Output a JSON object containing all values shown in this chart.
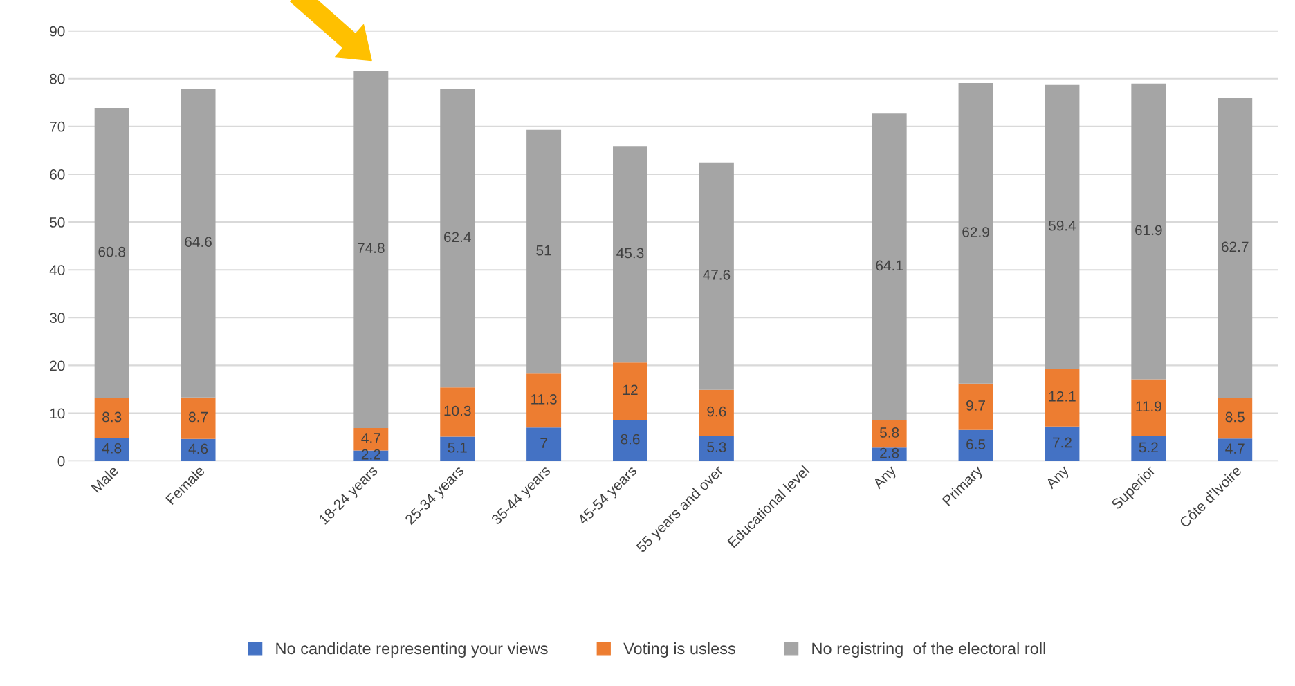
{
  "chart_data": {
    "type": "bar",
    "stacked": true,
    "categories": [
      "Male",
      "Female",
      null,
      "18-24 years",
      "25-34 years",
      "35-44 years",
      "45-54 years",
      "55 years and over",
      "Educational level",
      "Any",
      "Primary",
      "Any",
      "Superior",
      "Côte d'Ivoire"
    ],
    "series": [
      {
        "name": "No candidate representing your views",
        "color": "#4472c4",
        "values": [
          4.8,
          4.6,
          null,
          2.2,
          5.1,
          7,
          8.6,
          5.3,
          null,
          2.8,
          6.5,
          7.2,
          5.2,
          4.7
        ]
      },
      {
        "name": "Voting is usless",
        "color": "#ed7d31",
        "values": [
          8.3,
          8.7,
          null,
          4.7,
          10.3,
          11.3,
          12,
          9.6,
          null,
          5.8,
          9.7,
          12.1,
          11.9,
          8.5
        ]
      },
      {
        "name": "No registring  of the electoral roll",
        "color": "#a5a5a5",
        "values": [
          60.8,
          64.6,
          null,
          74.8,
          62.4,
          51,
          45.3,
          47.6,
          null,
          64.1,
          62.9,
          59.4,
          61.9,
          62.7
        ]
      }
    ],
    "ylim": [
      0,
      90
    ],
    "yticks": [
      0,
      10,
      20,
      30,
      40,
      50,
      60,
      70,
      80,
      90
    ],
    "grid": "y",
    "legend": "bottom",
    "data_labels": true
  }
}
